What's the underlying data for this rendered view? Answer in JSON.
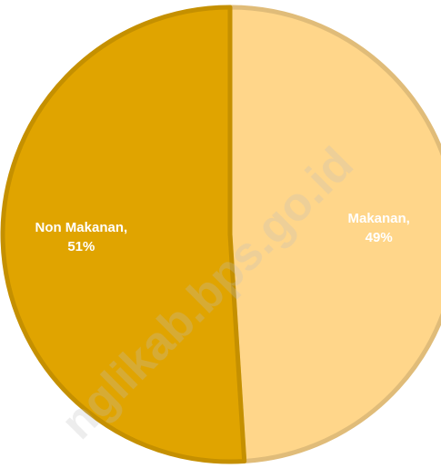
{
  "chart_data": {
    "type": "pie",
    "categories": [
      "Makanan,",
      "Non Makanan,"
    ],
    "values": [
      49,
      51
    ],
    "value_labels": [
      "49%",
      "51%"
    ],
    "colors": [
      "#FFD68A",
      "#E0A400"
    ],
    "watermark": "nglikab.bps.go.id"
  }
}
